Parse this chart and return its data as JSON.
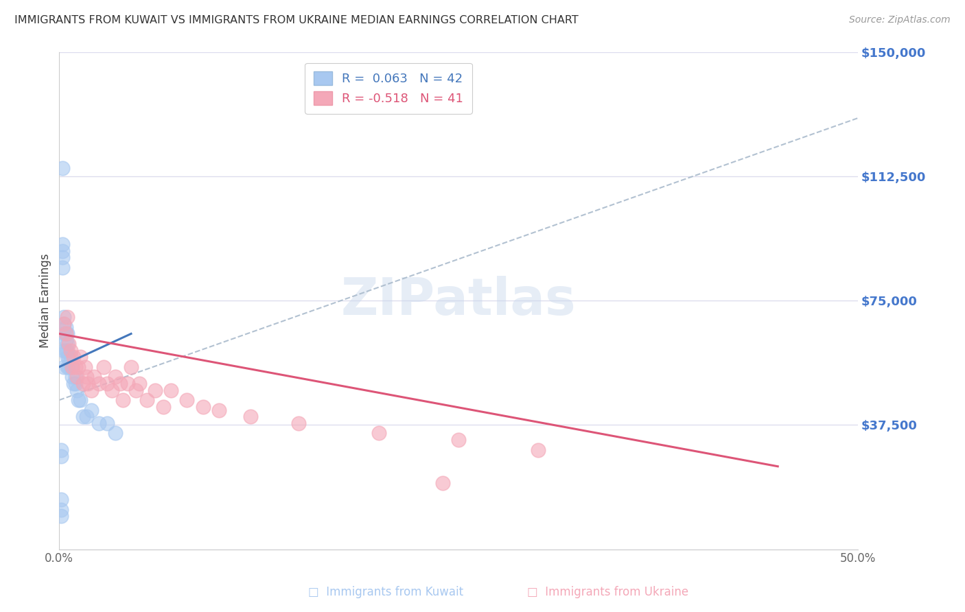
{
  "title": "IMMIGRANTS FROM KUWAIT VS IMMIGRANTS FROM UKRAINE MEDIAN EARNINGS CORRELATION CHART",
  "source": "Source: ZipAtlas.com",
  "ylabel": "Median Earnings",
  "xlim": [
    0.0,
    0.5
  ],
  "ylim": [
    0,
    150000
  ],
  "yticks": [
    0,
    37500,
    75000,
    112500,
    150000
  ],
  "ytick_labels": [
    "",
    "$37,500",
    "$75,000",
    "$112,500",
    "$150,000"
  ],
  "xticks": [
    0.0,
    0.1,
    0.2,
    0.3,
    0.4,
    0.5
  ],
  "xtick_labels": [
    "0.0%",
    "",
    "",
    "",
    "",
    "50.0%"
  ],
  "kuwait_color": "#a8c8f0",
  "ukraine_color": "#f4a8b8",
  "kuwait_line_color": "#4477bb",
  "ukraine_line_color": "#dd5577",
  "dash_color": "#aabbcc",
  "kuwait_R": 0.063,
  "kuwait_N": 42,
  "ukraine_R": -0.518,
  "ukraine_N": 41,
  "background_color": "#ffffff",
  "grid_color": "#ddddee",
  "ytick_color": "#4477cc",
  "xtick_color": "#666666",
  "ylabel_color": "#444444",
  "title_color": "#333333",
  "source_color": "#999999",
  "watermark_color": "#c8d8ec",
  "legend_text_blue": "#4477bb",
  "legend_text_pink": "#dd5577",
  "kuwait_x": [
    0.001,
    0.001,
    0.001,
    0.002,
    0.002,
    0.002,
    0.002,
    0.003,
    0.003,
    0.003,
    0.003,
    0.003,
    0.004,
    0.004,
    0.004,
    0.004,
    0.005,
    0.005,
    0.005,
    0.005,
    0.005,
    0.006,
    0.006,
    0.007,
    0.007,
    0.008,
    0.008,
    0.009,
    0.01,
    0.01,
    0.011,
    0.012,
    0.013,
    0.015,
    0.017,
    0.02,
    0.025,
    0.03,
    0.035,
    0.001,
    0.001,
    0.002
  ],
  "kuwait_y": [
    15000,
    12000,
    10000,
    85000,
    88000,
    90000,
    92000,
    55000,
    60000,
    65000,
    68000,
    70000,
    60000,
    63000,
    65000,
    67000,
    55000,
    58000,
    60000,
    62000,
    65000,
    55000,
    58000,
    55000,
    58000,
    52000,
    55000,
    50000,
    50000,
    52000,
    48000,
    45000,
    45000,
    40000,
    40000,
    42000,
    38000,
    38000,
    35000,
    30000,
    28000,
    115000
  ],
  "ukraine_x": [
    0.003,
    0.004,
    0.005,
    0.006,
    0.007,
    0.008,
    0.009,
    0.01,
    0.011,
    0.012,
    0.013,
    0.015,
    0.016,
    0.017,
    0.018,
    0.02,
    0.022,
    0.025,
    0.028,
    0.03,
    0.033,
    0.035,
    0.038,
    0.04,
    0.043,
    0.045,
    0.048,
    0.05,
    0.055,
    0.06,
    0.065,
    0.07,
    0.08,
    0.09,
    0.1,
    0.12,
    0.15,
    0.2,
    0.25,
    0.3,
    0.24
  ],
  "ukraine_y": [
    68000,
    65000,
    70000,
    62000,
    60000,
    55000,
    58000,
    55000,
    52000,
    55000,
    58000,
    50000,
    55000,
    52000,
    50000,
    48000,
    52000,
    50000,
    55000,
    50000,
    48000,
    52000,
    50000,
    45000,
    50000,
    55000,
    48000,
    50000,
    45000,
    48000,
    43000,
    48000,
    45000,
    43000,
    42000,
    40000,
    38000,
    35000,
    33000,
    30000,
    20000
  ]
}
